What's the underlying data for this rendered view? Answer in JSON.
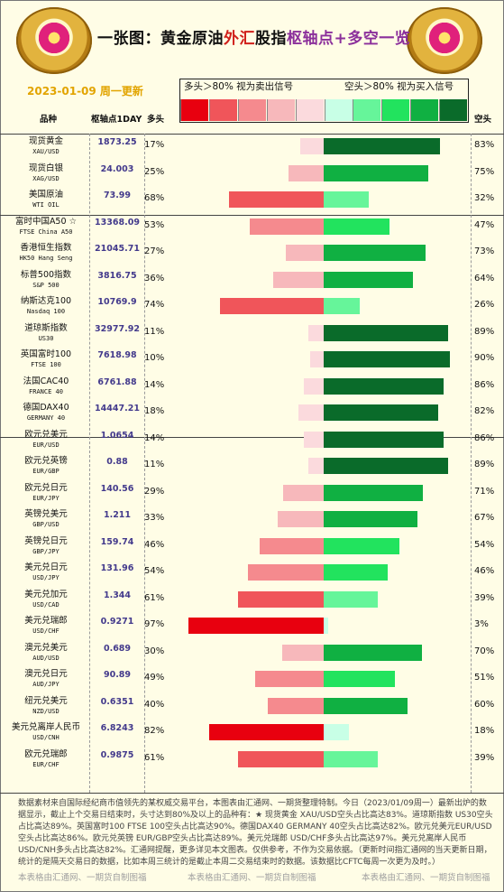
{
  "title": {
    "part1": "一张图：黄金原油",
    "part2": "外汇",
    "part3": "股指",
    "part4": "枢轴点",
    "part5": "+多空一览"
  },
  "date": "2023-01-09 周一更新",
  "legend": {
    "left_text": "多头＞80% 视为卖出信号",
    "right_text": "空头＞80% 视为买入信号",
    "colors": [
      "#e8000f",
      "#f0555a",
      "#f58a8e",
      "#f7b8bb",
      "#fbdadd",
      "#c8ffe6",
      "#66f59a",
      "#22e35e",
      "#10b042",
      "#0a6b2a"
    ]
  },
  "headers": {
    "name": "品种",
    "pivot": "枢轴点1DAY",
    "long": "多头",
    "short": "空头"
  },
  "chart_data": {
    "type": "bar",
    "title": "一张图：黄金原油外汇股指枢轴点+多空一览",
    "rows": [
      {
        "name": "现货黄金",
        "code": "XAU/USD",
        "pivot": "1873.25",
        "long": 17,
        "short": 83
      },
      {
        "name": "现货白银",
        "code": "XAG/USD",
        "pivot": "24.003",
        "long": 25,
        "short": 75
      },
      {
        "name": "美国原油",
        "code": "WTI OIL",
        "pivot": "73.99",
        "long": 68,
        "short": 32
      },
      {
        "name": "富时中国A50 ☆",
        "code": "FTSE China A50",
        "pivot": "13368.09",
        "long": 53,
        "short": 47
      },
      {
        "name": "香港恒生指数",
        "code": "HK50 Hang Seng",
        "pivot": "21045.71",
        "long": 27,
        "short": 73
      },
      {
        "name": "标普500指数",
        "code": "S&P 500",
        "pivot": "3816.75",
        "long": 36,
        "short": 64
      },
      {
        "name": "纳斯达克100",
        "code": "Nasdaq 100",
        "pivot": "10769.9",
        "long": 74,
        "short": 26
      },
      {
        "name": "道琼斯指数",
        "code": "US30",
        "pivot": "32977.92",
        "long": 11,
        "short": 89
      },
      {
        "name": "英国富时100",
        "code": "FTSE 100",
        "pivot": "7618.98",
        "long": 10,
        "short": 90
      },
      {
        "name": "法国CAC40",
        "code": "FRANCE 40",
        "pivot": "6761.88",
        "long": 14,
        "short": 86
      },
      {
        "name": "德国DAX40",
        "code": "GERMANY 40",
        "pivot": "14447.21",
        "long": 18,
        "short": 82
      },
      {
        "name": "欧元兑美元",
        "code": "EUR/USD",
        "pivot": "1.0654",
        "long": 14,
        "short": 86
      },
      {
        "name": "欧元兑英镑",
        "code": "EUR/GBP",
        "pivot": "0.88",
        "long": 11,
        "short": 89
      },
      {
        "name": "欧元兑日元",
        "code": "EUR/JPY",
        "pivot": "140.56",
        "long": 29,
        "short": 71
      },
      {
        "name": "英镑兑美元",
        "code": "GBP/USD",
        "pivot": "1.211",
        "long": 33,
        "short": 67
      },
      {
        "name": "英镑兑日元",
        "code": "GBP/JPY",
        "pivot": "159.74",
        "long": 46,
        "short": 54
      },
      {
        "name": "美元兑日元",
        "code": "USD/JPY",
        "pivot": "131.96",
        "long": 54,
        "short": 46
      },
      {
        "name": "美元兑加元",
        "code": "USD/CAD",
        "pivot": "1.344",
        "long": 61,
        "short": 39
      },
      {
        "name": "美元兑瑞郎",
        "code": "USD/CHF",
        "pivot": "0.9271",
        "long": 97,
        "short": 3
      },
      {
        "name": "澳元兑美元",
        "code": "AUD/USD",
        "pivot": "0.689",
        "long": 30,
        "short": 70
      },
      {
        "name": "澳元兑日元",
        "code": "AUD/JPY",
        "pivot": "90.89",
        "long": 49,
        "short": 51
      },
      {
        "name": "纽元兑美元",
        "code": "NZD/USD",
        "pivot": "0.6351",
        "long": 40,
        "short": 60
      },
      {
        "name": "美元兑离岸人民币",
        "code": "USD/CNH",
        "pivot": "6.8243",
        "long": 82,
        "short": 18
      },
      {
        "name": "欧元兑瑞郎",
        "code": "EUR/CHF",
        "pivot": "0.9875",
        "long": 61,
        "short": 39
      }
    ],
    "xlim": [
      0,
      100
    ]
  },
  "footer": "数据素材来自国际经纪商市值领先的某权威交易平台，本图表由汇通网、一期货整理特制。今日（2023/01/09周一）最新出炉的数据显示，截止上个交易日结束时，头寸达到80%及以上的品种有：★ 现货黄金 XAU/USD空头占比高达83%。道琼斯指数 US30空头占比高达89%。英国富时100 FTSE 100空头占比高达90%。德国DAX40 GERMANY 40空头占比高达82%。欧元兑美元EUR/USD空头占比高达86%。欧元兑英镑 EUR/GBP空头占比高达89%。美元兑瑞郎 USD/CHF多头占比高达97%。美元兑离岸人民币USD/CNH多头占比高达82%。汇通网提醒，更多详见本文图表。仅供参考，不作为交易依据。（更新时间指汇通网的当天更新日期，统计的是隔天交易日的数据，比如本周三统计的是截止本周二交易结束时的数据。该数据比CFTC每周一次更为及时。）",
  "watermark": "本表格由汇通网、一期货自制图福"
}
